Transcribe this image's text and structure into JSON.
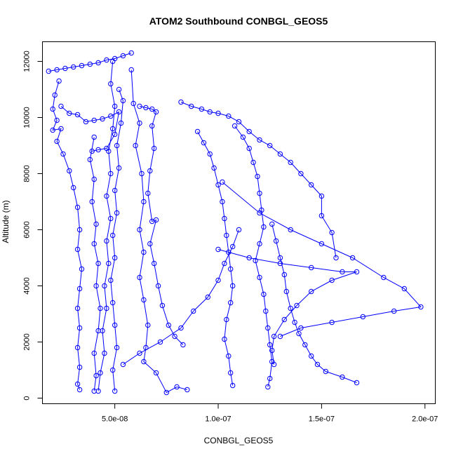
{
  "chart_data": {
    "type": "scatter",
    "title": "ATOM2 Southbound CONBGL_GEOS5",
    "xlabel": "CONBGL_GEOS5",
    "ylabel": "Altitude (m)",
    "xlim": [
      1.5e-08,
      2.05e-07
    ],
    "ylim": [
      -200,
      12700
    ],
    "x_ticks": [
      5e-08,
      1e-07,
      1.5e-07,
      2e-07
    ],
    "x_tick_labels": [
      "5.0e-08",
      "1.0e-07",
      "1.5e-07",
      "2.0e-07"
    ],
    "y_ticks": [
      0,
      2000,
      4000,
      6000,
      8000,
      10000,
      12000
    ],
    "y_tick_labels": [
      "0",
      "2000",
      "4000",
      "6000",
      "8000",
      "10000",
      "12000"
    ],
    "grid": false,
    "legend": "none",
    "color": "#0000ff",
    "marker": "open-circle",
    "series": [
      {
        "points": [
          [
            1.8e-08,
            11650
          ],
          [
            2.2e-08,
            11700
          ],
          [
            2.6e-08,
            11750
          ],
          [
            3e-08,
            11800
          ],
          [
            3.4e-08,
            11850
          ],
          [
            3.8e-08,
            11900
          ],
          [
            4.2e-08,
            11950
          ],
          [
            4.6e-08,
            12050
          ],
          [
            5e-08,
            12100
          ],
          [
            5.4e-08,
            12200
          ],
          [
            5.8e-08,
            12300
          ]
        ]
      },
      {
        "points": [
          [
            2.3e-08,
            11300
          ],
          [
            2.1e-08,
            10800
          ],
          [
            2e-08,
            10300
          ],
          [
            2.2e-08,
            9900
          ],
          [
            2e-08,
            9550
          ],
          [
            2.4e-08,
            9600
          ],
          [
            2.2e-08,
            9150
          ],
          [
            2.5e-08,
            8700
          ],
          [
            2.8e-08,
            8100
          ],
          [
            3e-08,
            7500
          ],
          [
            3.2e-08,
            6800
          ],
          [
            3.3e-08,
            6000
          ],
          [
            3.2e-08,
            5300
          ],
          [
            3.4e-08,
            4600
          ],
          [
            3.3e-08,
            3900
          ],
          [
            3.2e-08,
            3200
          ],
          [
            3.3e-08,
            2500
          ],
          [
            3.2e-08,
            1800
          ],
          [
            3.3e-08,
            1100
          ],
          [
            3.2e-08,
            500
          ],
          [
            3.3e-08,
            300
          ]
        ]
      },
      {
        "points": [
          [
            2.4e-08,
            10400
          ],
          [
            2.8e-08,
            10150
          ],
          [
            3.2e-08,
            10100
          ],
          [
            3.6e-08,
            9850
          ],
          [
            4e-08,
            9900
          ],
          [
            4.4e-08,
            9950
          ],
          [
            4.8e-08,
            10050
          ],
          [
            5.2e-08,
            10200
          ],
          [
            5e-08,
            9400
          ],
          [
            4.6e-08,
            8900
          ],
          [
            4.2e-08,
            8850
          ],
          [
            3.9e-08,
            8800
          ]
        ]
      },
      {
        "points": [
          [
            4.9e-08,
            12000
          ],
          [
            4.8e-08,
            11200
          ],
          [
            5e-08,
            10400
          ],
          [
            4.9e-08,
            9600
          ],
          [
            4.7e-08,
            8800
          ],
          [
            4.8e-08,
            8000
          ],
          [
            4.6e-08,
            7200
          ],
          [
            4.8e-08,
            6400
          ],
          [
            4.6e-08,
            5600
          ],
          [
            4.7e-08,
            4800
          ],
          [
            4.5e-08,
            4000
          ],
          [
            4.6e-08,
            3200
          ],
          [
            4.4e-08,
            2400
          ],
          [
            4.5e-08,
            1600
          ],
          [
            4.3e-08,
            900
          ],
          [
            4.2e-08,
            250
          ]
        ]
      },
      {
        "points": [
          [
            5.2e-08,
            11000
          ],
          [
            5.4e-08,
            10600
          ],
          [
            5.3e-08,
            9800
          ],
          [
            5.1e-08,
            9000
          ],
          [
            5.2e-08,
            8200
          ],
          [
            5e-08,
            7400
          ],
          [
            5.1e-08,
            6600
          ],
          [
            4.9e-08,
            5800
          ],
          [
            5e-08,
            5000
          ],
          [
            4.8e-08,
            4200
          ],
          [
            4.9e-08,
            3400
          ],
          [
            5e-08,
            2600
          ],
          [
            5.1e-08,
            1800
          ],
          [
            4.9e-08,
            1000
          ],
          [
            5e-08,
            250
          ]
        ]
      },
      {
        "points": [
          [
            4e-08,
            9300
          ],
          [
            3.8e-08,
            8500
          ],
          [
            4e-08,
            7800
          ],
          [
            3.9e-08,
            7000
          ],
          [
            4.1e-08,
            6200
          ],
          [
            4e-08,
            5500
          ],
          [
            4.2e-08,
            4800
          ],
          [
            4.1e-08,
            4000
          ],
          [
            4.3e-08,
            3200
          ],
          [
            4.2e-08,
            2400
          ],
          [
            4e-08,
            1600
          ],
          [
            4.1e-08,
            800
          ],
          [
            4e-08,
            250
          ]
        ]
      },
      {
        "points": [
          [
            5.8e-08,
            11700
          ],
          [
            5.9e-08,
            10500
          ],
          [
            6.2e-08,
            9800
          ],
          [
            6e-08,
            9000
          ],
          [
            6.3e-08,
            8000
          ],
          [
            6.4e-08,
            7000
          ],
          [
            6.2e-08,
            6000
          ],
          [
            6.4e-08,
            5200
          ],
          [
            6.2e-08,
            4300
          ],
          [
            6.4e-08,
            3500
          ],
          [
            6.6e-08,
            2600
          ],
          [
            6.5e-08,
            1800
          ],
          [
            6.4e-08,
            1300
          ],
          [
            7e-08,
            900
          ],
          [
            7.5e-08,
            200
          ],
          [
            8e-08,
            400
          ],
          [
            8.5e-08,
            300
          ]
        ]
      },
      {
        "points": [
          [
            6.2e-08,
            10400
          ],
          [
            6.5e-08,
            10350
          ],
          [
            6.8e-08,
            10300
          ],
          [
            7e-08,
            10200
          ],
          [
            6.8e-08,
            9700
          ],
          [
            6.9e-08,
            8900
          ],
          [
            6.7e-08,
            8100
          ],
          [
            6.6e-08,
            7300
          ],
          [
            6.8e-08,
            6300
          ],
          [
            7e-08,
            6350
          ],
          [
            6.7e-08,
            5500
          ],
          [
            6.9e-08,
            4800
          ],
          [
            7.1e-08,
            4000
          ],
          [
            7.3e-08,
            3300
          ],
          [
            7.6e-08,
            2600
          ],
          [
            7.9e-08,
            2200
          ],
          [
            8.3e-08,
            1900
          ]
        ]
      },
      {
        "points": [
          [
            8.2e-08,
            10550
          ],
          [
            8.7e-08,
            10400
          ],
          [
            9.2e-08,
            10300
          ],
          [
            9.6e-08,
            10200
          ],
          [
            1e-07,
            10150
          ],
          [
            1.05e-07,
            10050
          ],
          [
            1.1e-07,
            9850
          ],
          [
            1.15e-07,
            9500
          ],
          [
            1.2e-07,
            9200
          ],
          [
            1.25e-07,
            9000
          ],
          [
            1.3e-07,
            8700
          ],
          [
            1.35e-07,
            8400
          ],
          [
            1.4e-07,
            8000
          ],
          [
            1.45e-07,
            7600
          ],
          [
            1.5e-07,
            7200
          ],
          [
            1.5e-07,
            6500
          ],
          [
            1.55e-07,
            5900
          ],
          [
            1.57e-07,
            5000
          ]
        ]
      },
      {
        "points": [
          [
            9e-08,
            9500
          ],
          [
            9.3e-08,
            9100
          ],
          [
            9.6e-08,
            8700
          ],
          [
            9.8e-08,
            8200
          ],
          [
            1e-07,
            7600
          ],
          [
            1.02e-07,
            7000
          ],
          [
            1.03e-07,
            6400
          ],
          [
            1.04e-07,
            5800
          ],
          [
            1.05e-07,
            5200
          ],
          [
            1.06e-07,
            4600
          ],
          [
            1.07e-07,
            4000
          ],
          [
            1.06e-07,
            3400
          ],
          [
            1.04e-07,
            2800
          ],
          [
            1.03e-07,
            2100
          ],
          [
            1.05e-07,
            1500
          ],
          [
            1.06e-07,
            900
          ],
          [
            1.07e-07,
            450
          ]
        ]
      },
      {
        "points": [
          [
            1.08e-07,
            9700
          ],
          [
            1.12e-07,
            9300
          ],
          [
            1.15e-07,
            8900
          ],
          [
            1.17e-07,
            8400
          ],
          [
            1.19e-07,
            7900
          ],
          [
            1.2e-07,
            7300
          ],
          [
            1.21e-07,
            6700
          ],
          [
            1.22e-07,
            6100
          ],
          [
            1.2e-07,
            5500
          ],
          [
            1.18e-07,
            4900
          ],
          [
            1.2e-07,
            4300
          ],
          [
            1.22e-07,
            3700
          ],
          [
            1.23e-07,
            3100
          ],
          [
            1.24e-07,
            2500
          ],
          [
            1.25e-07,
            1900
          ],
          [
            1.26e-07,
            1300
          ],
          [
            1.25e-07,
            700
          ],
          [
            1.24e-07,
            400
          ]
        ]
      },
      {
        "points": [
          [
            1.26e-07,
            6200
          ],
          [
            1.28e-07,
            5600
          ],
          [
            1.3e-07,
            5000
          ],
          [
            1.32e-07,
            4400
          ],
          [
            1.33e-07,
            3800
          ],
          [
            1.35e-07,
            3200
          ],
          [
            1.37e-07,
            2700
          ],
          [
            1.39e-07,
            2300
          ],
          [
            1.42e-07,
            1900
          ],
          [
            1.45e-07,
            1500
          ],
          [
            1.48e-07,
            1200
          ],
          [
            1.52e-07,
            950
          ],
          [
            1.6e-07,
            750
          ],
          [
            1.67e-07,
            550
          ]
        ]
      },
      {
        "points": [
          [
            1.02e-07,
            7700
          ],
          [
            1.2e-07,
            6600
          ],
          [
            1.35e-07,
            6000
          ],
          [
            1.5e-07,
            5500
          ],
          [
            1.65e-07,
            5000
          ],
          [
            1.8e-07,
            4300
          ],
          [
            1.9e-07,
            3900
          ],
          [
            1.98e-07,
            3250
          ],
          [
            1.85e-07,
            3100
          ],
          [
            1.7e-07,
            2900
          ],
          [
            1.55e-07,
            2700
          ],
          [
            1.4e-07,
            2500
          ],
          [
            1.3e-07,
            2200
          ]
        ]
      },
      {
        "points": [
          [
            1e-07,
            5300
          ],
          [
            1.15e-07,
            5000
          ],
          [
            1.3e-07,
            4800
          ],
          [
            1.45e-07,
            4650
          ],
          [
            1.6e-07,
            4500
          ],
          [
            1.67e-07,
            4500
          ],
          [
            1.55e-07,
            4200
          ],
          [
            1.45e-07,
            3800
          ],
          [
            1.38e-07,
            3300
          ],
          [
            1.32e-07,
            2800
          ],
          [
            1.27e-07,
            2200
          ],
          [
            1.26e-07,
            1700
          ],
          [
            1.27e-07,
            1200
          ]
        ]
      },
      {
        "points": [
          [
            5.4e-08,
            1200
          ],
          [
            6.2e-08,
            1600
          ],
          [
            7.2e-08,
            2000
          ],
          [
            8.2e-08,
            2500
          ],
          [
            8.8e-08,
            3100
          ],
          [
            9.5e-08,
            3600
          ],
          [
            1e-07,
            4200
          ],
          [
            1.03e-07,
            4800
          ],
          [
            1.07e-07,
            5400
          ],
          [
            1.1e-07,
            6000
          ]
        ]
      }
    ]
  }
}
